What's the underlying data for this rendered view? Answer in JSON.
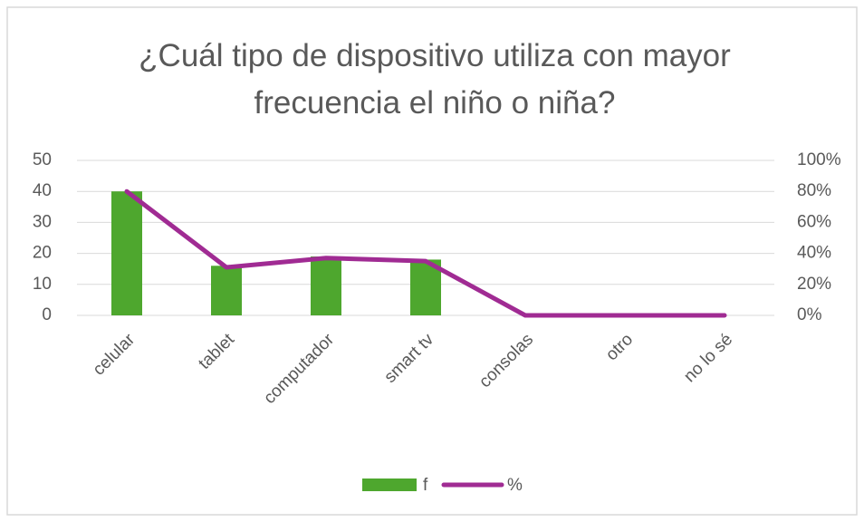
{
  "chart_data": {
    "type": "bar",
    "title": "¿Cuál tipo de dispositivo utiliza con mayor frecuencia el niño o niña?",
    "categories": [
      "celular",
      "tablet",
      "computador",
      "smart tv",
      "consolas",
      "otro",
      "no lo sé"
    ],
    "series": [
      {
        "name": "f",
        "type": "bar",
        "color": "#4ea72e",
        "values": [
          40,
          16,
          19,
          18,
          0,
          0,
          0
        ]
      },
      {
        "name": "%",
        "type": "line",
        "axis": "y2",
        "color": "#a02b93",
        "values": [
          80,
          31,
          37,
          35,
          0,
          0,
          0
        ]
      }
    ],
    "ylim": [
      0,
      50
    ],
    "yticks": [
      0,
      10,
      20,
      30,
      40,
      50
    ],
    "y2lim": [
      0,
      100
    ],
    "y2ticks": [
      {
        "value": 0,
        "label": "0%"
      },
      {
        "value": 20,
        "label": "20%"
      },
      {
        "value": 40,
        "label": "40%"
      },
      {
        "value": 60,
        "label": "60%"
      },
      {
        "value": 80,
        "label": "80%"
      },
      {
        "value": 100,
        "label": "100%"
      }
    ],
    "grid": true,
    "legend": "bottom"
  }
}
